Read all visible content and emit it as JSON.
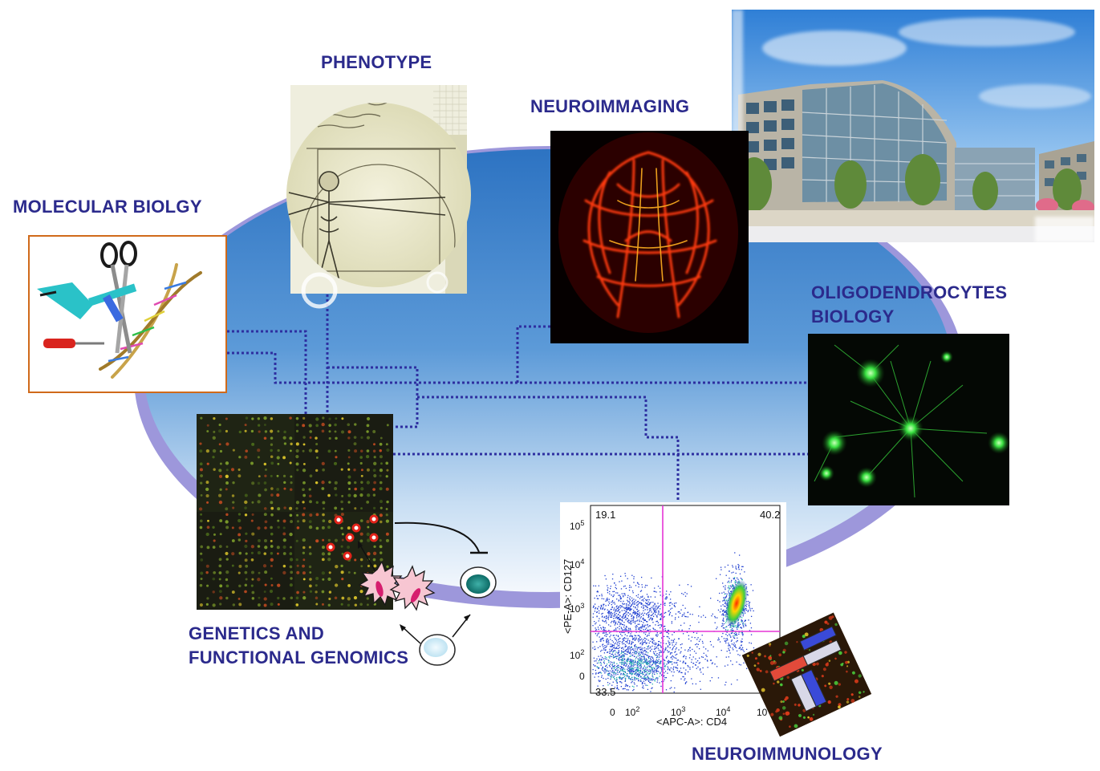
{
  "labels": {
    "phenotype": "PHENOTYPE",
    "neuroimaging": "NEUROIMMAGING",
    "molecular_biology": "MOLECULAR BIOLGY",
    "oligodendrocytes_line1": "OLIGODENDROCYTES",
    "oligodendrocytes_line2": "BIOLOGY",
    "genetics_line1": "GENETICS AND",
    "genetics_line2": "FUNCTIONAL GENOMICS",
    "neuroimmunology": "NEUROIMMUNOLOGY"
  },
  "flow_plot": {
    "q1": "19.1",
    "q2": "40.2",
    "q3": "33.5",
    "x_label": "<APC-A>: CD4",
    "y_label": "<PE-A>: CD127",
    "x_ticks": [
      {
        "base": "0",
        "exp": ""
      },
      {
        "base": "10",
        "exp": "2"
      },
      {
        "base": "10",
        "exp": "3"
      },
      {
        "base": "10",
        "exp": "4"
      },
      {
        "base": "10",
        "exp": ""
      }
    ],
    "y_ticks": [
      {
        "base": "10",
        "exp": "5"
      },
      {
        "base": "10",
        "exp": "4"
      },
      {
        "base": "10",
        "exp": "3"
      },
      {
        "base": "10",
        "exp": "2"
      },
      {
        "base": "0",
        "exp": ""
      }
    ]
  },
  "colors": {
    "label_text": "#2b2a8c",
    "connector": "#2e2fa0",
    "ellipse_top": "#2d73c2",
    "ellipse_bottom": "#f4f8fd",
    "ellipse_rim": "#9d97db",
    "gate": "#e535d6"
  },
  "icons": {
    "molecular": "tools-dna-icon",
    "phenotype": "vitruvian-man-icon",
    "neuroimaging": "brain-tractography-icon",
    "building": "institute-building-icon",
    "oligodendrocytes": "cell-fluorescence-icon",
    "microarray": "microarray-icon",
    "antibody": "antibody-icon"
  }
}
